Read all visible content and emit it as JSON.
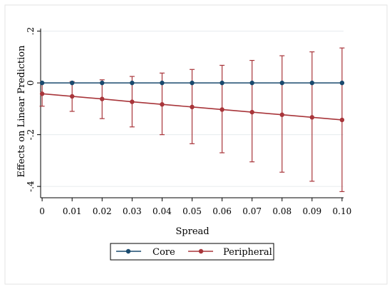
{
  "chart_data": {
    "type": "line",
    "title": "",
    "xlabel": "Spread",
    "ylabel": "Effects on Linear Prediction",
    "x": [
      0,
      0.01,
      0.02,
      0.03,
      0.04,
      0.05,
      0.06,
      0.07,
      0.08,
      0.09,
      0.1
    ],
    "x_tick_labels": [
      "0",
      "0.01",
      "0.02",
      "0.03",
      "0.04",
      "0.05",
      "0.06",
      "0.07",
      "0.08",
      "0.09",
      "0.10"
    ],
    "y_ticks": [
      -0.4,
      -0.2,
      0,
      0.2
    ],
    "y_tick_labels": [
      "-.4",
      "-.2",
      "0",
      ".2"
    ],
    "xlim": [
      -0.0005,
      0.1005
    ],
    "ylim": [
      -0.43,
      0.21
    ],
    "grid": true,
    "legend_position": "bottom",
    "series": [
      {
        "name": "Core",
        "color": "#1a4a6e",
        "values": [
          0,
          0,
          0,
          0,
          0,
          0,
          0,
          0,
          0,
          0,
          0
        ],
        "ci_lower": [
          0,
          0,
          0,
          0,
          0,
          0,
          0,
          0,
          0,
          0,
          0
        ],
        "ci_upper": [
          0,
          0,
          0,
          0,
          0,
          0,
          0,
          0,
          0,
          0,
          0
        ]
      },
      {
        "name": "Peripheral",
        "color": "#a8353a",
        "values": [
          -0.042,
          -0.052,
          -0.062,
          -0.073,
          -0.083,
          -0.093,
          -0.103,
          -0.113,
          -0.123,
          -0.133,
          -0.143
        ],
        "ci_lower": [
          -0.09,
          -0.11,
          -0.138,
          -0.17,
          -0.2,
          -0.235,
          -0.27,
          -0.305,
          -0.345,
          -0.38,
          -0.42
        ],
        "ci_upper": [
          0.0,
          0.005,
          0.012,
          0.025,
          0.038,
          0.052,
          0.068,
          0.087,
          0.105,
          0.12,
          0.135
        ]
      }
    ]
  }
}
